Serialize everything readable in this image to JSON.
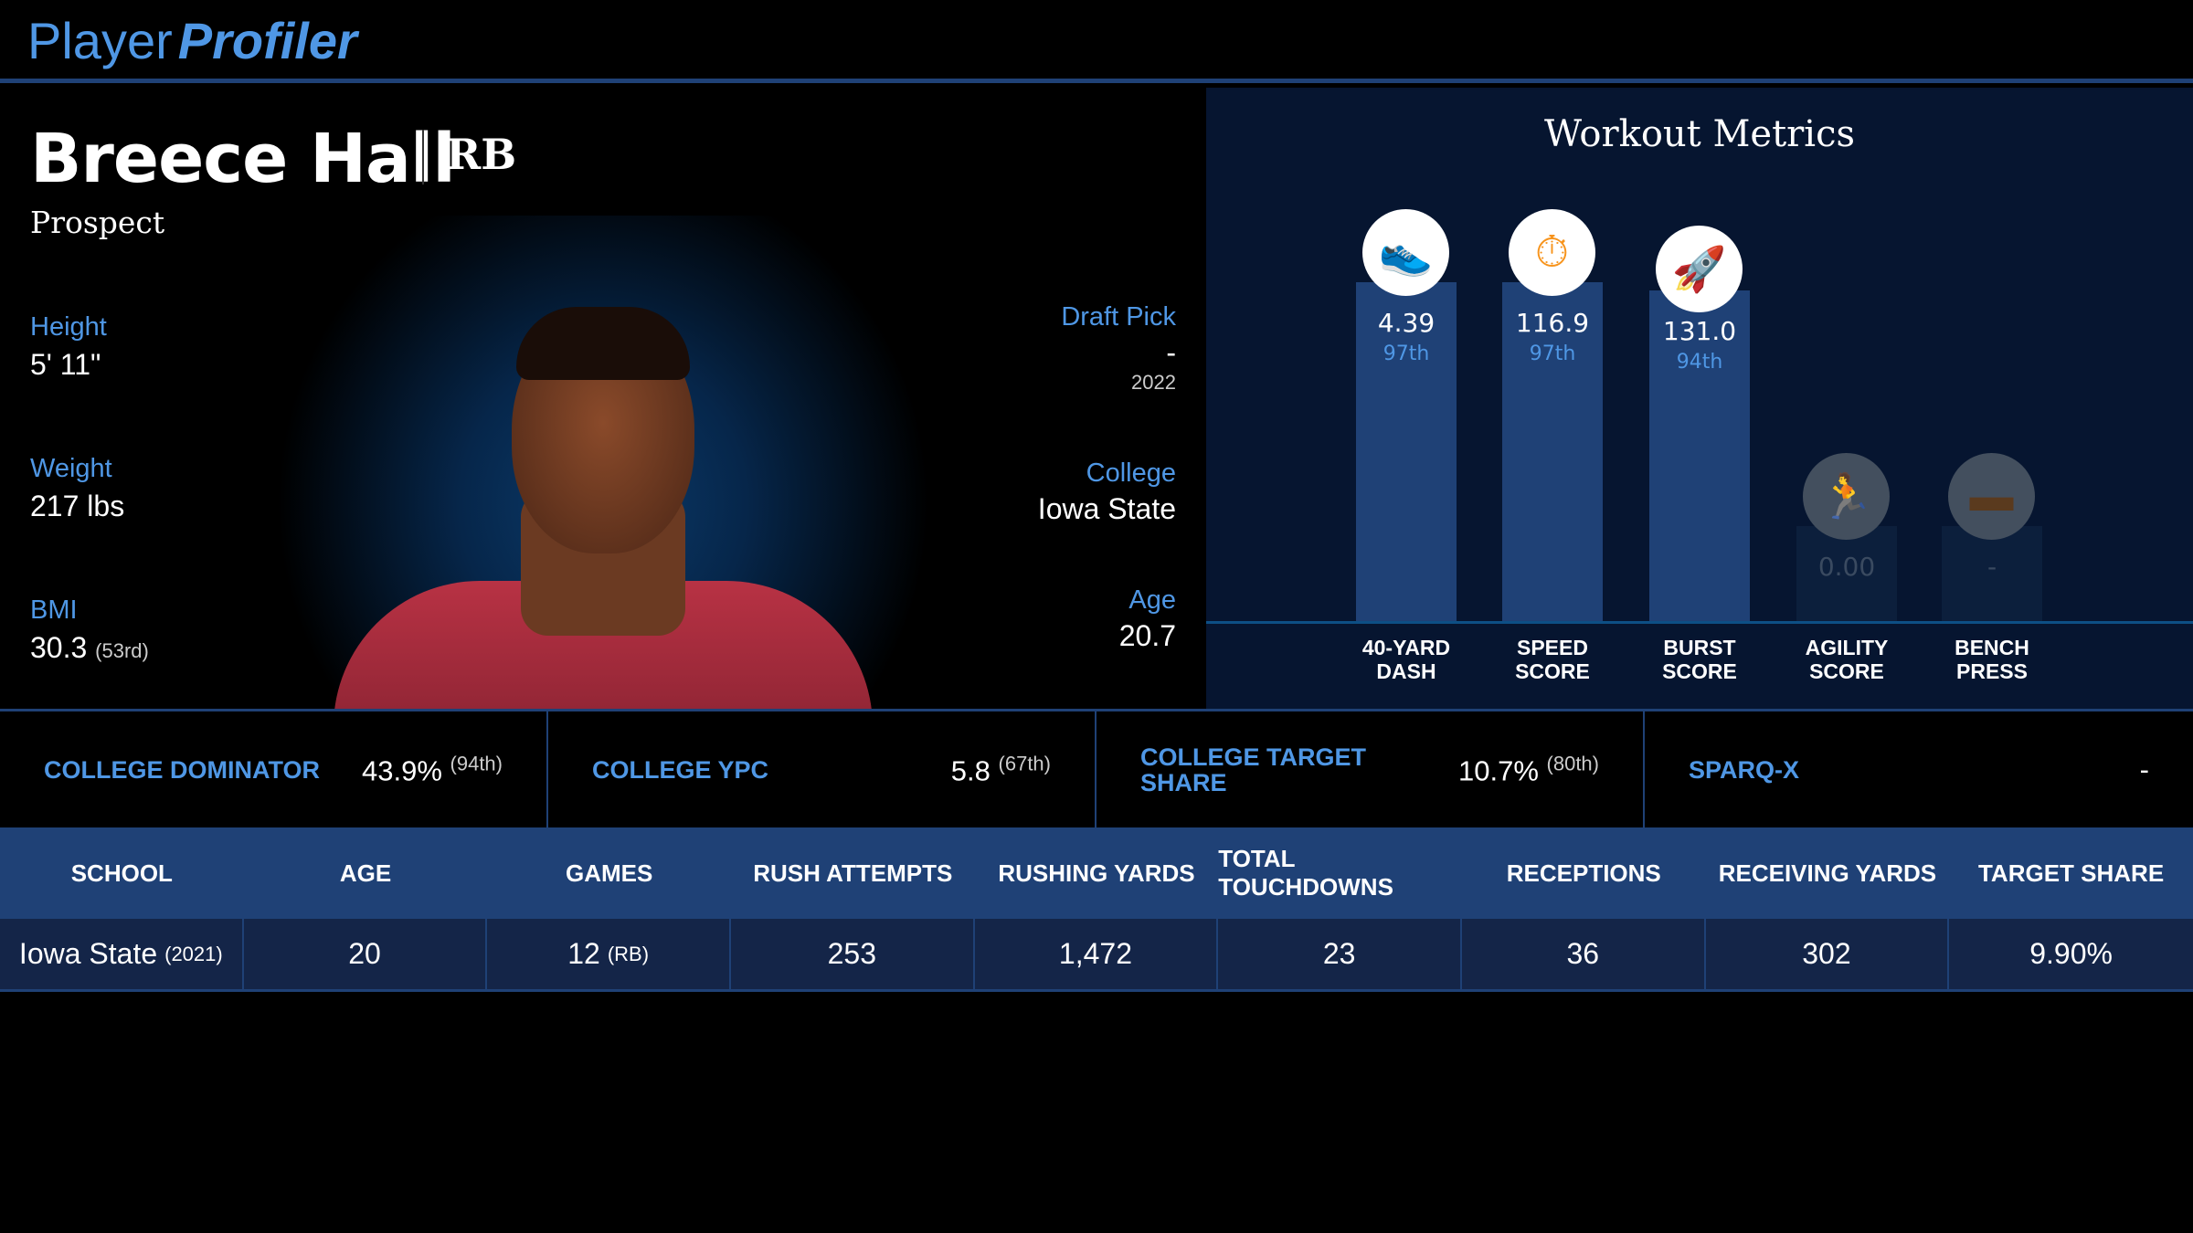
{
  "header": {
    "logo_regular": "Player",
    "logo_bold": "Profiler"
  },
  "player": {
    "name": "Breece Hall",
    "position": "RB",
    "status": "Prospect",
    "height_label": "Height",
    "height": "5' 11\"",
    "weight_label": "Weight",
    "weight": "217 lbs",
    "bmi_label": "BMI",
    "bmi": "30.3",
    "bmi_rank": "(53rd)",
    "draft_label": "Draft Pick",
    "draft_pick": "-",
    "draft_year": "2022",
    "college_label": "College",
    "college": "Iowa State",
    "age_label": "Age",
    "age": "20.7"
  },
  "workout": {
    "title": "Workout Metrics",
    "colors": {
      "bar": "#1f4176",
      "icon": "#f7941d"
    },
    "metrics": [
      {
        "label1": "40-YARD",
        "label2": "DASH",
        "value": "4.39",
        "pct": "97th",
        "percentile": 97,
        "icon": "running-shoe-icon"
      },
      {
        "label1": "SPEED",
        "label2": "SCORE",
        "value": "116.9",
        "pct": "97th",
        "percentile": 97,
        "icon": "stopwatch-icon"
      },
      {
        "label1": "BURST",
        "label2": "SCORE",
        "value": "131.0",
        "pct": "94th",
        "percentile": 94,
        "icon": "rocket-icon"
      },
      {
        "label1": "AGILITY",
        "label2": "SCORE",
        "value": "0.00",
        "pct": "",
        "percentile": null,
        "icon": "runner-icon"
      },
      {
        "label1": "BENCH",
        "label2": "PRESS",
        "value": "-",
        "pct": "",
        "percentile": null,
        "icon": "dumbbell-icon"
      }
    ]
  },
  "stats": [
    {
      "label": "COLLEGE DOMINATOR",
      "value": "43.9%",
      "rank": "(94th)"
    },
    {
      "label": "COLLEGE YPC",
      "value": "5.8",
      "rank": "(67th)"
    },
    {
      "label": "COLLEGE TARGET SHARE",
      "value": "10.7%",
      "rank": "(80th)"
    },
    {
      "label": "SPARQ-X",
      "value": "-",
      "rank": ""
    }
  ],
  "table": {
    "headers": [
      "SCHOOL",
      "AGE",
      "GAMES",
      "RUSH ATTEMPTS",
      "RUSHING YARDS",
      "TOTAL TOUCHDOWNS",
      "RECEPTIONS",
      "RECEIVING YARDS",
      "TARGET SHARE"
    ],
    "row": {
      "school": "Iowa State",
      "season": "(2021)",
      "age": "20",
      "games": "12",
      "games_pos": "(RB)",
      "rush_attempts": "253",
      "rushing_yards": "1,472",
      "total_touchdowns": "23",
      "receptions": "36",
      "receiving_yards": "302",
      "target_share": "9.90%"
    }
  }
}
